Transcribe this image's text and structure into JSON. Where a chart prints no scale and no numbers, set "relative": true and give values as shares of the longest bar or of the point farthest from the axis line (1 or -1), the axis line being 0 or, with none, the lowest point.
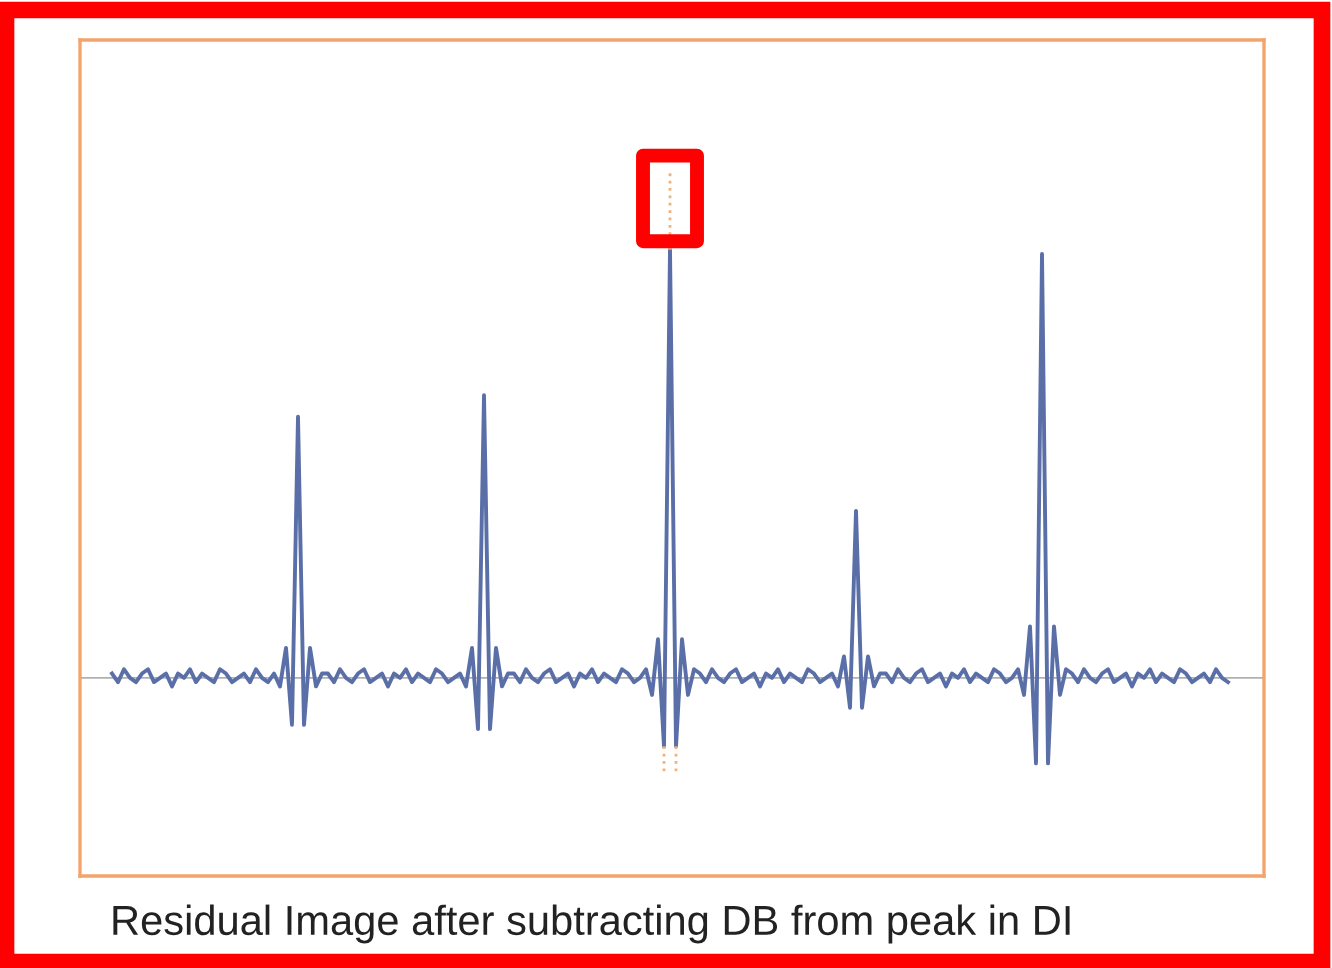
{
  "chart_data": {
    "type": "line",
    "relative": true,
    "categories": [
      null,
      null,
      null,
      null,
      null,
      null,
      null,
      null,
      null,
      null,
      null,
      null,
      null,
      null,
      null,
      null,
      null,
      null,
      null,
      null,
      null,
      null,
      null,
      null,
      null,
      null,
      null,
      null,
      null,
      null,
      null,
      null,
      null,
      null,
      null,
      null,
      null,
      null,
      null,
      null,
      null,
      null,
      null,
      null,
      null,
      null,
      null,
      null,
      null,
      null,
      null,
      null,
      null,
      null,
      null,
      null,
      null,
      null,
      null,
      null,
      null,
      null,
      null,
      null,
      null,
      null,
      null,
      null,
      null,
      null,
      null,
      null,
      null,
      null,
      null,
      null,
      null,
      null,
      null,
      null,
      null,
      null,
      null,
      null,
      null,
      null,
      null,
      null,
      null,
      null,
      null,
      null,
      null,
      null,
      null,
      null,
      null,
      null,
      null,
      null,
      null,
      null,
      null,
      null,
      null,
      null,
      null,
      null,
      null,
      null,
      null,
      null,
      null,
      null,
      null,
      null,
      null,
      null,
      null,
      null,
      null,
      null,
      null,
      null,
      null,
      null,
      null,
      null,
      null,
      null,
      null,
      null,
      null,
      null,
      null,
      null,
      null,
      null,
      null,
      null,
      null,
      null,
      null,
      null,
      null,
      null,
      null,
      null,
      null,
      null,
      null,
      null,
      null,
      null,
      null,
      null,
      null,
      null,
      null,
      null,
      null,
      null,
      null,
      null,
      null,
      null,
      null,
      null,
      null,
      null,
      null,
      null,
      null,
      null,
      null,
      null,
      null,
      null,
      null,
      null,
      null,
      null,
      null,
      null,
      null,
      null,
      null
    ],
    "series": [
      {
        "color": "#5a6fa8",
        "values": [
          0.01,
          -0.01,
          0.02,
          0,
          -0.01,
          0.01,
          0.02,
          -0.01,
          0,
          0.01,
          -0.02,
          0.01,
          0,
          0.02,
          -0.01,
          0.01,
          0,
          -0.01,
          0.02,
          0.01,
          -0.01,
          0,
          0.01,
          -0.01,
          0.02,
          0,
          -0.01,
          0.01,
          -0.02,
          0.07,
          -0.11,
          0.61,
          -0.11,
          0.07,
          -0.02,
          0.01,
          0.01,
          -0.01,
          0.02,
          0,
          -0.01,
          0.01,
          0.02,
          -0.01,
          0,
          0.01,
          -0.02,
          0.01,
          0,
          0.02,
          -0.01,
          0.01,
          0,
          -0.01,
          0.02,
          0.01,
          -0.01,
          0,
          0.01,
          -0.02,
          0.07,
          -0.12,
          0.66,
          -0.12,
          0.07,
          -0.02,
          0.01,
          0.01,
          -0.01,
          0.02,
          0,
          -0.01,
          0.01,
          0.02,
          -0.01,
          0,
          0.01,
          -0.02,
          0.01,
          0,
          0.02,
          -0.01,
          0.01,
          0,
          -0.01,
          0.02,
          0.01,
          -0.01,
          0,
          0.02,
          -0.04,
          0.09,
          -0.16,
          1.0,
          -0.16,
          0.09,
          -0.04,
          0.02,
          0.01,
          -0.01,
          0.02,
          0,
          -0.01,
          0.01,
          0.02,
          -0.01,
          0,
          0.01,
          -0.02,
          0.01,
          0,
          0.02,
          -0.01,
          0.01,
          0,
          -0.01,
          0.02,
          0.01,
          -0.01,
          0,
          0.01,
          -0.02,
          0.05,
          -0.07,
          0.39,
          -0.07,
          0.05,
          -0.02,
          0.01,
          0.01,
          -0.01,
          0.02,
          0,
          -0.01,
          0.01,
          0.02,
          -0.01,
          0,
          0.01,
          -0.02,
          0.01,
          0,
          0.02,
          -0.01,
          0.01,
          0,
          -0.01,
          0.02,
          0.01,
          -0.01,
          0,
          0.02,
          -0.04,
          0.12,
          -0.2,
          0.99,
          -0.2,
          0.12,
          -0.04,
          0.02,
          0.01,
          -0.01,
          0.02,
          0,
          -0.01,
          0.01,
          0.02,
          -0.01,
          0,
          0.01,
          -0.02,
          0.01,
          0,
          0.02,
          -0.01,
          0.01,
          0,
          -0.01,
          0.02,
          0.01,
          -0.01,
          0,
          0.01,
          -0.01,
          0.02,
          0,
          -0.01
        ]
      }
    ],
    "annotations": [
      "Residual Image after subtracting DB from peak in DI"
    ],
    "legend": false,
    "tick_labels": false
  }
}
